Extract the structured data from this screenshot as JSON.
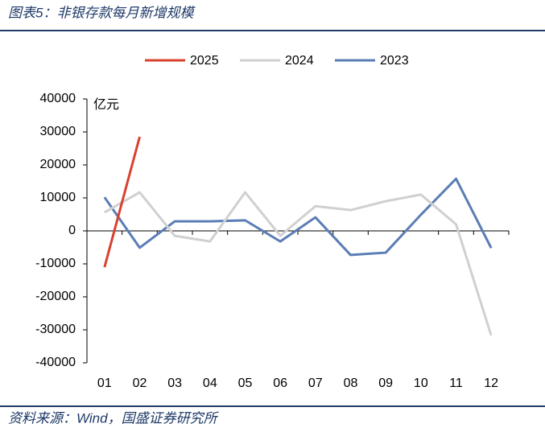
{
  "header": {
    "title": "图表5：非银存款每月新增规模"
  },
  "footer": {
    "source": "资料来源：Wind，国盛证券研究所"
  },
  "chart_data": {
    "type": "line",
    "unit_label": "亿元",
    "categories": [
      "01",
      "02",
      "03",
      "04",
      "05",
      "06",
      "07",
      "08",
      "09",
      "10",
      "11",
      "12"
    ],
    "series": [
      {
        "name": "2025",
        "color": "#d9412e",
        "values": [
          -11000,
          28500,
          null,
          null,
          null,
          null,
          null,
          null,
          null,
          null,
          null,
          null
        ]
      },
      {
        "name": "2024",
        "color": "#d0d0d0",
        "values": [
          5600,
          11700,
          -1500,
          -3200,
          11700,
          -1500,
          7500,
          6300,
          9000,
          11000,
          2000,
          -31700
        ]
      },
      {
        "name": "2023",
        "color": "#5b7db5",
        "values": [
          10200,
          -5100,
          2900,
          2900,
          3200,
          -3200,
          4100,
          -7300,
          -6600,
          4900,
          15800,
          -5200
        ]
      }
    ],
    "ylim": [
      -40000,
      40000
    ],
    "yticks": [
      -40000,
      -30000,
      -20000,
      -10000,
      0,
      10000,
      20000,
      30000,
      40000
    ],
    "legend": "top"
  }
}
